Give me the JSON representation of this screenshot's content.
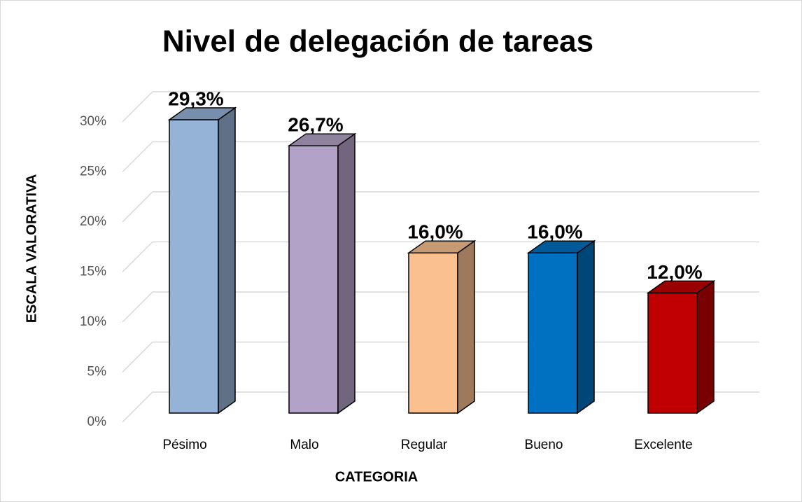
{
  "chart_data": {
    "type": "bar3d",
    "title": "Nivel de delegación de tareas",
    "x_label": "CATEGORIA",
    "y_label": "ESCALA  VALORATIVA",
    "categories": [
      "Pésimo",
      "Malo",
      "Regular",
      "Bueno",
      "Excelente"
    ],
    "values": [
      29.3,
      26.7,
      16.0,
      16.0,
      12.0
    ],
    "value_labels": [
      "29,3%",
      "26,7%",
      "16,0%",
      "16,0%",
      "12,0%"
    ],
    "colors": [
      "#95b3d7",
      "#b3a2c7",
      "#fac090",
      "#0070c0",
      "#c00000"
    ],
    "ylim": [
      0,
      30
    ],
    "yticks": [
      {
        "value": 0,
        "label": "0%"
      },
      {
        "value": 5,
        "label": "5%"
      },
      {
        "value": 10,
        "label": "10%"
      },
      {
        "value": 15,
        "label": "15%"
      },
      {
        "value": 20,
        "label": "20%"
      },
      {
        "value": 25,
        "label": "25%"
      },
      {
        "value": 30,
        "label": "30%"
      }
    ],
    "grid": true
  }
}
